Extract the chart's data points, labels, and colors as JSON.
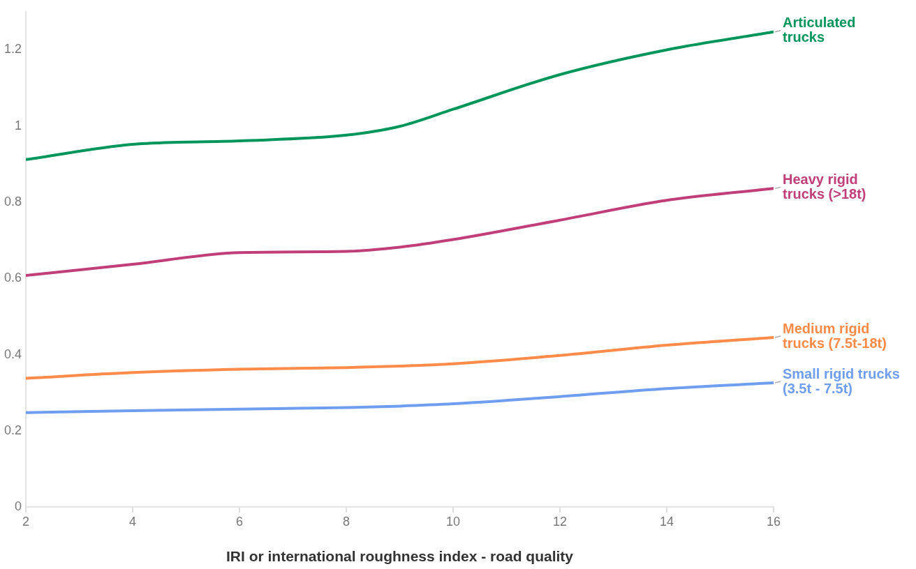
{
  "chart_data": {
    "type": "line",
    "xlabel": "IRI or international roughness index - road quality",
    "x": [
      2,
      4,
      6,
      8,
      9,
      10,
      12,
      14,
      16
    ],
    "series": [
      {
        "name": "Articulated\ntrucks",
        "color": "#00955a",
        "values": [
          0.912,
          0.952,
          0.961,
          0.976,
          0.999,
          1.044,
          1.135,
          1.2,
          1.247
        ]
      },
      {
        "name": "Heavy rigid\ntrucks (>18t)",
        "color": "#c03f78",
        "values": [
          0.608,
          0.637,
          0.668,
          0.671,
          0.682,
          0.702,
          0.753,
          0.805,
          0.836
        ]
      },
      {
        "name": "Medium rigid\ntrucks (7.5t-18t)",
        "color": "#ff8b4a",
        "values": [
          0.338,
          0.353,
          0.362,
          0.366,
          0.37,
          0.376,
          0.398,
          0.425,
          0.445
        ]
      },
      {
        "name": "Small rigid trucks\n(3.5t - 7.5t)",
        "color": "#6f9ef0",
        "values": [
          0.248,
          0.253,
          0.257,
          0.261,
          0.265,
          0.271,
          0.29,
          0.311,
          0.326
        ]
      }
    ],
    "xlim": [
      2,
      16
    ],
    "xticks": [
      2,
      4,
      6,
      8,
      10,
      12,
      14,
      16
    ],
    "ylim": [
      0,
      1.3
    ],
    "yticks": [
      0,
      0.2,
      0.4,
      0.6,
      0.8,
      1,
      1.2
    ],
    "grid": false,
    "legend": false,
    "marker": "none",
    "line_style": "solid"
  }
}
